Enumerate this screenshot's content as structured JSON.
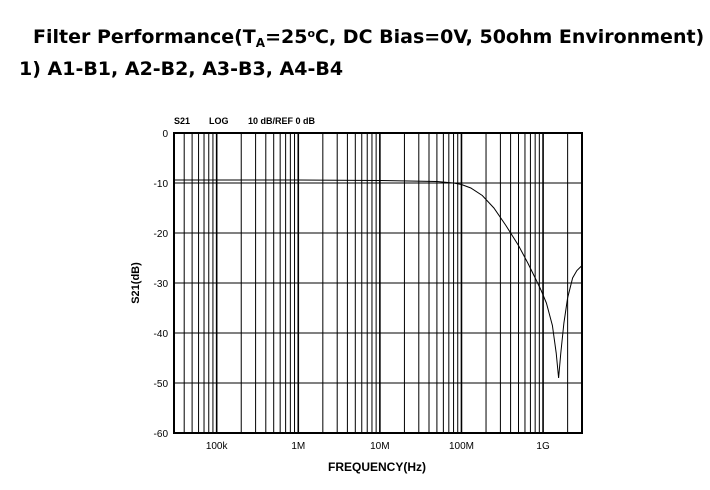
{
  "heading": {
    "line1_prefix": "Filter Performance(T",
    "line1_sub": "A",
    "line1_mid": "=25",
    "line1_sup": "o",
    "line1_suffix": "C, DC Bias=0V, 50ohm Environment)",
    "line2": "1) A1-B1, A2-B2, A3-B3, A4-B4"
  },
  "chart_data": {
    "type": "line",
    "header": {
      "param": "S21",
      "format": "LOG",
      "scale": "10 dB/REF 0 dB"
    },
    "xlabel": "FREQUENCY(Hz)",
    "ylabel": "S21(dB)",
    "x_scale": "log",
    "xlim": [
      30000,
      3000000000
    ],
    "ylim": [
      -60,
      0
    ],
    "x_ticks": [
      {
        "value": 100000,
        "label": "100k"
      },
      {
        "value": 1000000,
        "label": "1M"
      },
      {
        "value": 10000000,
        "label": "10M"
      },
      {
        "value": 100000000,
        "label": "100M"
      },
      {
        "value": 1000000000,
        "label": "1G"
      }
    ],
    "y_ticks": [
      0,
      -10,
      -20,
      -30,
      -40,
      -50,
      -60
    ],
    "grid": true,
    "series": [
      {
        "x": [
          30000,
          100000,
          1000000,
          10000000,
          50000000,
          80000000,
          100000000,
          130000000,
          180000000,
          250000000,
          350000000,
          500000000,
          650000000,
          800000000,
          950000000,
          1100000000,
          1300000000,
          1450000000,
          1550000000,
          1650000000,
          1800000000,
          2000000000,
          2300000000,
          2600000000,
          3000000000
        ],
        "y": [
          -9.4,
          -9.4,
          -9.4,
          -9.5,
          -9.7,
          -10.0,
          -10.3,
          -11.0,
          -12.5,
          -15.0,
          -18.5,
          -22.5,
          -26.0,
          -29.0,
          -31.5,
          -34.0,
          -38.5,
          -44.0,
          -49.0,
          -44.0,
          -38.0,
          -33.0,
          -29.0,
          -27.5,
          -26.5
        ]
      }
    ]
  }
}
